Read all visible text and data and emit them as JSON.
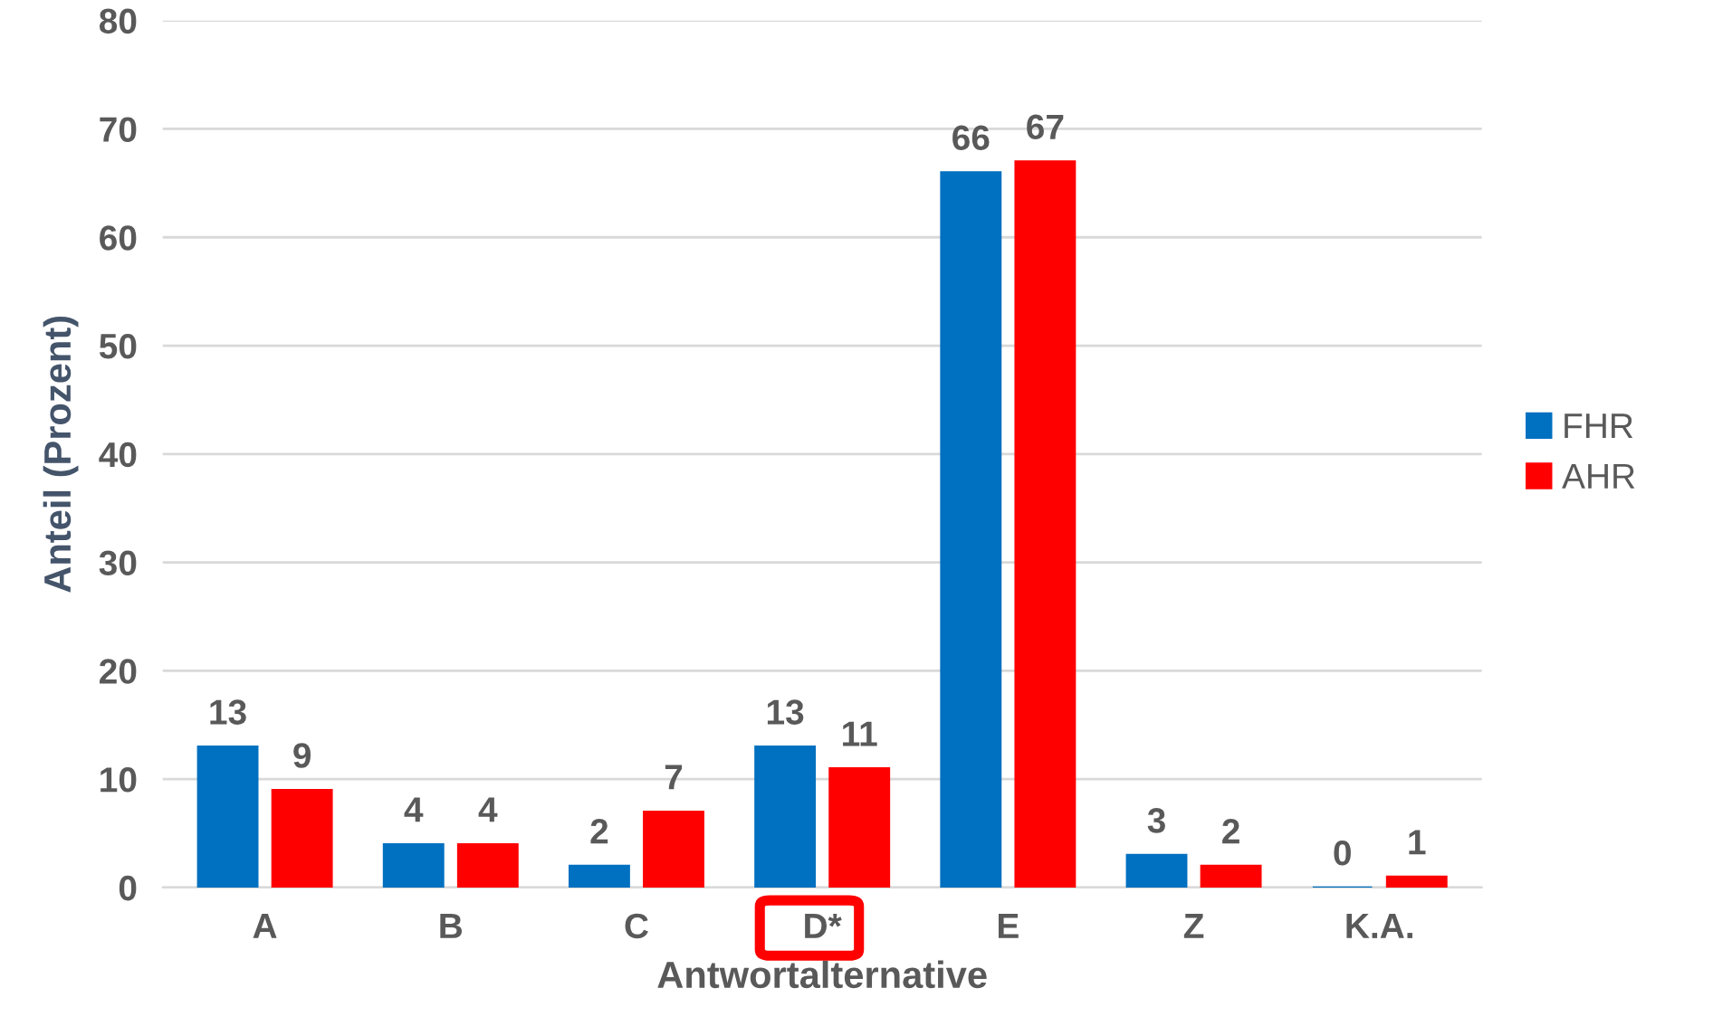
{
  "chart_data": {
    "type": "bar",
    "xlabel": "Antwortalternative",
    "ylabel": "Anteil (Prozent)",
    "categories": [
      "A",
      "B",
      "C",
      "D*",
      "E",
      "Z",
      "K.A."
    ],
    "series": [
      {
        "name": "FHR",
        "color": "#0070c0",
        "values": [
          13,
          4,
          2,
          13,
          66,
          3,
          0
        ]
      },
      {
        "name": "AHR",
        "color": "#ff0000",
        "values": [
          9,
          4,
          7,
          11,
          67,
          2,
          1
        ]
      }
    ],
    "ylim": [
      0,
      80
    ],
    "yticks": [
      0,
      10,
      20,
      30,
      40,
      50,
      60,
      70,
      80
    ],
    "grid": "y",
    "legend": "right",
    "data_labels": true
  }
}
